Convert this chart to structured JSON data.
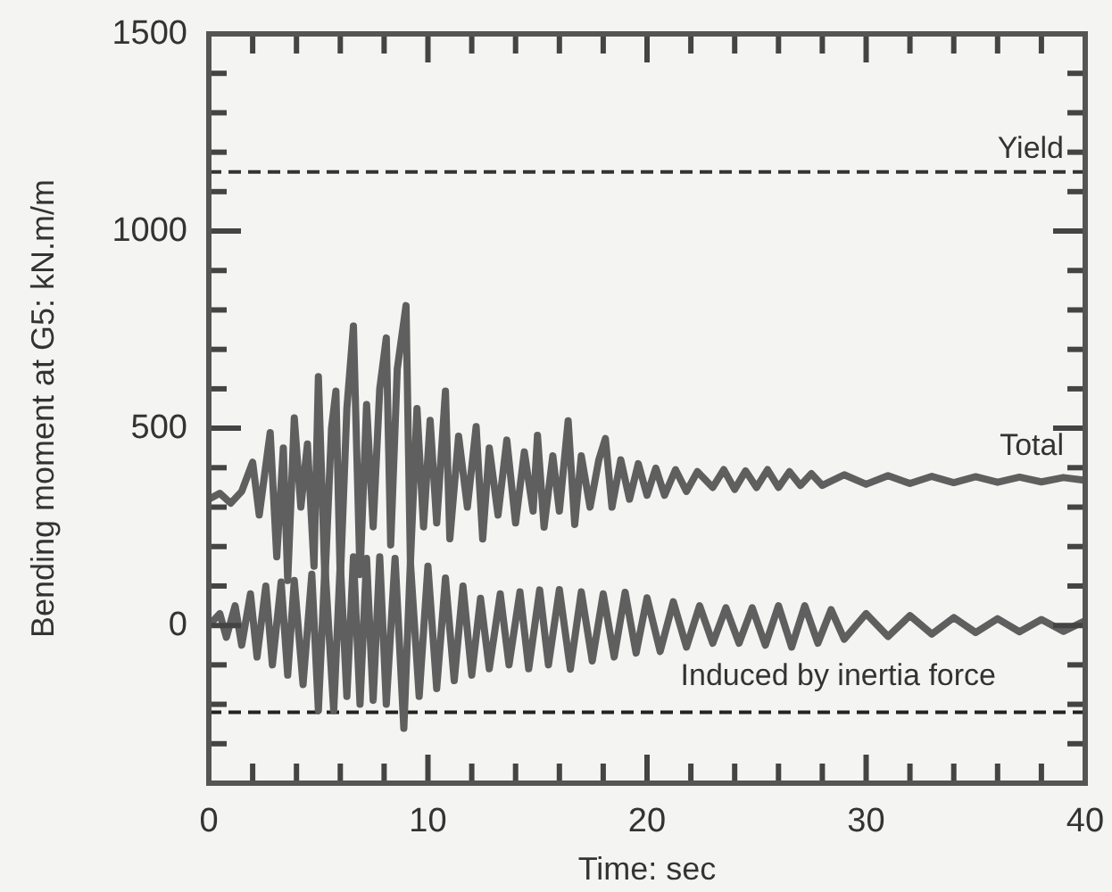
{
  "chart_data": {
    "type": "line",
    "xlabel": "Time: sec",
    "ylabel": "Bending moment at G5: kN.m/m",
    "xlim": [
      0,
      40
    ],
    "ylim": [
      -400,
      1500
    ],
    "xticks": [
      0,
      {
        "value": 2,
        "label": null
      },
      {
        "value": 4,
        "label": null
      },
      {
        "value": 6,
        "label": null
      },
      {
        "value": 8,
        "label": null
      },
      10,
      {
        "value": 12,
        "label": null
      },
      {
        "value": 14,
        "label": null
      },
      {
        "value": 16,
        "label": null
      },
      {
        "value": 18,
        "label": null
      },
      20,
      {
        "value": 22,
        "label": null
      },
      {
        "value": 24,
        "label": null
      },
      {
        "value": 26,
        "label": null
      },
      {
        "value": 28,
        "label": null
      },
      30,
      {
        "value": 32,
        "label": null
      },
      {
        "value": 34,
        "label": null
      },
      {
        "value": 36,
        "label": null
      },
      {
        "value": 38,
        "label": null
      },
      40
    ],
    "yticks": [
      {
        "value": -300,
        "label": null
      },
      {
        "value": -200,
        "label": null
      },
      {
        "value": -100,
        "label": null
      },
      0,
      {
        "value": 100,
        "label": null
      },
      {
        "value": 200,
        "label": null
      },
      {
        "value": 300,
        "label": null
      },
      {
        "value": 400,
        "label": null
      },
      500,
      {
        "value": 600,
        "label": null
      },
      {
        "value": 700,
        "label": null
      },
      {
        "value": 800,
        "label": null
      },
      {
        "value": 900,
        "label": null
      },
      1000,
      {
        "value": 1100,
        "label": null
      },
      {
        "value": 1200,
        "label": null
      },
      {
        "value": 1300,
        "label": null
      },
      {
        "value": 1400,
        "label": null
      },
      1500
    ],
    "ref_lines": [
      {
        "axis": "y",
        "value": 1150,
        "label": "Yield",
        "color": "#333333",
        "line_style": "dashed"
      },
      {
        "axis": "y",
        "value": -220,
        "label": null,
        "color": "#222222",
        "line_style": "dashed"
      }
    ],
    "series": [
      {
        "name": "Total",
        "color": "#5f5f5f",
        "x": [
          0,
          0.5,
          1,
          1.5,
          2,
          2.3,
          2.8,
          3.1,
          3.4,
          3.6,
          3.9,
          4.2,
          4.5,
          4.8,
          5,
          5.3,
          5.6,
          5.8,
          6,
          6.3,
          6.6,
          6.9,
          7.2,
          7.5,
          7.8,
          8.1,
          8.3,
          8.6,
          9,
          9.2,
          9.5,
          9.8,
          10.1,
          10.4,
          10.8,
          11,
          11.4,
          11.8,
          12.2,
          12.5,
          12.8,
          13.2,
          13.6,
          14,
          14.4,
          14.8,
          15,
          15.3,
          15.7,
          16,
          16.4,
          16.7,
          17,
          17.4,
          17.8,
          18.1,
          18.4,
          18.8,
          19.2,
          19.6,
          20,
          20.4,
          20.8,
          21.3,
          21.8,
          22.3,
          23,
          23.5,
          24,
          24.5,
          25,
          25.5,
          26,
          26.5,
          27,
          27.5,
          28,
          29,
          30,
          31,
          32,
          33,
          34,
          35,
          36,
          37,
          38,
          39,
          40
        ],
        "values": [
          320,
          335,
          310,
          340,
          414,
          280,
          489,
          174,
          450,
          114,
          526,
          300,
          460,
          150,
          631,
          114,
          500,
          594,
          114,
          550,
          759,
          129,
          560,
          250,
          600,
          729,
          204,
          650,
          811,
          159,
          550,
          250,
          520,
          260,
          594,
          220,
          480,
          300,
          504,
          219,
          450,
          280,
          470,
          260,
          440,
          290,
          482,
          249,
          430,
          290,
          519,
          256,
          430,
          300,
          420,
          474,
          300,
          420,
          320,
          410,
          330,
          399,
          330,
          395,
          340,
          390,
          350,
          395,
          345,
          392,
          350,
          395,
          350,
          390,
          355,
          385,
          355,
          382,
          358,
          380,
          360,
          378,
          362,
          377,
          363,
          376,
          364,
          375,
          368
        ]
      },
      {
        "name": "Induced by inertia force",
        "color": "#5f5f5f",
        "x": [
          0,
          0.5,
          0.8,
          1.2,
          1.5,
          1.9,
          2.2,
          2.6,
          2.9,
          3.3,
          3.6,
          3.9,
          4.3,
          4.7,
          5,
          5.3,
          5.7,
          6,
          6.3,
          6.6,
          6.9,
          7.2,
          7.5,
          7.8,
          8.1,
          8.5,
          8.9,
          9.2,
          9.6,
          10,
          10.4,
          10.8,
          11.2,
          11.6,
          12,
          12.4,
          12.8,
          13.3,
          13.7,
          14.2,
          14.6,
          15.1,
          15.5,
          16,
          16.5,
          17,
          17.5,
          18,
          18.5,
          19,
          19.5,
          20,
          20.6,
          21.2,
          21.8,
          22.4,
          23,
          23.6,
          24.2,
          24.8,
          25.4,
          26,
          26.6,
          27.2,
          27.8,
          28.4,
          29,
          30,
          31,
          32,
          33,
          34,
          35,
          36,
          37,
          38,
          39,
          40
        ],
        "values": [
          0,
          30,
          -30,
          50,
          -50,
          80,
          -80,
          100,
          -100,
          110,
          -126,
          114,
          -150,
          130,
          -216,
          150,
          -216,
          160,
          -180,
          174,
          -200,
          170,
          -190,
          174,
          -200,
          170,
          -261,
          160,
          -180,
          150,
          -160,
          120,
          -140,
          100,
          -126,
          69,
          -110,
          80,
          -100,
          85,
          -110,
          90,
          -100,
          91,
          -111,
          85,
          -90,
          80,
          -80,
          84,
          -70,
          70,
          -66,
          60,
          -55,
          50,
          -45,
          45,
          -45,
          45,
          -50,
          50,
          -55,
          50,
          -45,
          40,
          -35,
          30,
          -28,
          25,
          -22,
          20,
          -18,
          17,
          -16,
          15,
          -15,
          12
        ]
      }
    ]
  }
}
